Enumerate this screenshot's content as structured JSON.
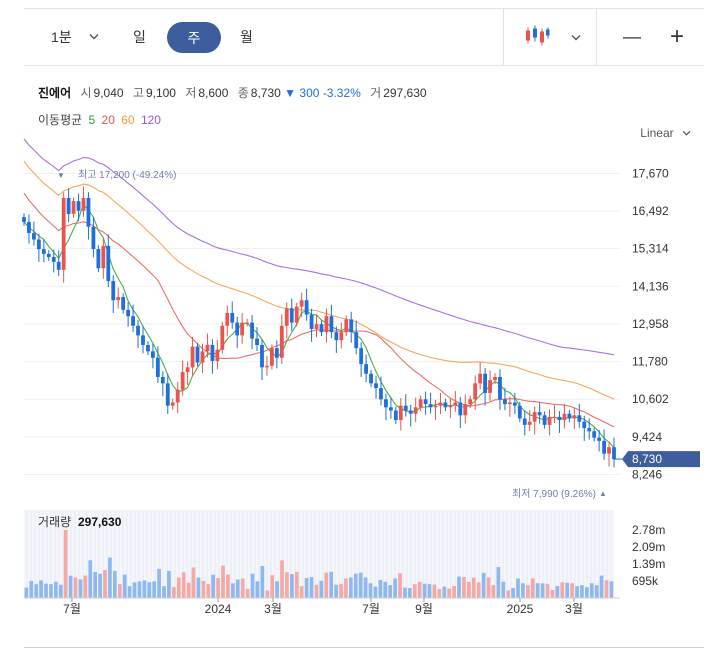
{
  "toolbar": {
    "interval_label": "1분",
    "periods": [
      "일",
      "주",
      "월"
    ],
    "selected_period": "주",
    "zoom_out_label": "—",
    "zoom_in_label": "+"
  },
  "stock": {
    "name": "진에어",
    "open_label": "시",
    "open": "9,040",
    "high_label": "고",
    "high": "9,100",
    "low_label": "저",
    "low": "8,600",
    "close_label": "종",
    "close": "8,730",
    "change_arrow": "▼",
    "change": "300",
    "change_pct": "-3.32%",
    "volume_label": "거",
    "volume": "297,630"
  },
  "ma_legend": {
    "title": "이동평균",
    "items": [
      {
        "label": "5",
        "color": "#2ca02c"
      },
      {
        "label": "20",
        "color": "#e8554f"
      },
      {
        "label": "60",
        "color": "#f29a3c"
      },
      {
        "label": "120",
        "color": "#9a57e0"
      }
    ]
  },
  "scale_mode": "Linear",
  "colors": {
    "up": "#e8554f",
    "down": "#1e6fd9",
    "accent": "#3d5d9c"
  },
  "chart_data": {
    "type": "candlestick",
    "y_ticks": [
      "17,670",
      "16,492",
      "15,314",
      "14,136",
      "12,958",
      "11,780",
      "10,602",
      "9,424",
      "8,246"
    ],
    "ylim": [
      7700,
      18400
    ],
    "x_tick_labels": [
      "7월",
      "2024",
      "3월",
      "7월",
      "9월",
      "2025",
      "3월"
    ],
    "current_price_label": "8,730",
    "high_marker": {
      "text": "최고 17,200 (-49.24%)",
      "arrow": "▼"
    },
    "low_marker": {
      "text": "최저 7,990 (9.26%)",
      "arrow": "▲"
    },
    "close": [
      16150,
      15800,
      15600,
      15300,
      15150,
      15050,
      14900,
      14650,
      16900,
      16400,
      16800,
      16500,
      16900,
      16000,
      15300,
      14700,
      15400,
      14300,
      13700,
      13800,
      13400,
      13200,
      12900,
      12600,
      12300,
      12100,
      11900,
      11300,
      11100,
      10400,
      10500,
      10900,
      11450,
      11600,
      12250,
      11750,
      12100,
      12300,
      11800,
      12150,
      12900,
      13300,
      13000,
      12600,
      13000,
      13000,
      12500,
      12300,
      11600,
      11650,
      12200,
      11900,
      12900,
      13450,
      13000,
      13500,
      13700,
      13250,
      12800,
      12950,
      12700,
      13200,
      12700,
      12450,
      12700,
      13100,
      12700,
      12200,
      11700,
      11400,
      11100,
      10950,
      10600,
      10350,
      10250,
      9950,
      10400,
      10250,
      10150,
      10350,
      10600,
      10450,
      10350,
      10400,
      10500,
      10350,
      10400,
      10500,
      10100,
      10450,
      10600,
      11100,
      11400,
      10800,
      11200,
      11300,
      10600,
      10450,
      10500,
      10400,
      10000,
      9800,
      9900,
      10200,
      10100,
      9800,
      10050,
      10050,
      9950,
      10150,
      10000,
      10100,
      9900,
      9700,
      9600,
      9400,
      9300,
      8900,
      9100,
      8730
    ],
    "volume_ticks": [
      "2.78m",
      "2.09m",
      "1.39m",
      "695k"
    ],
    "volume_label": "거래량",
    "volume_value": "297,630"
  }
}
